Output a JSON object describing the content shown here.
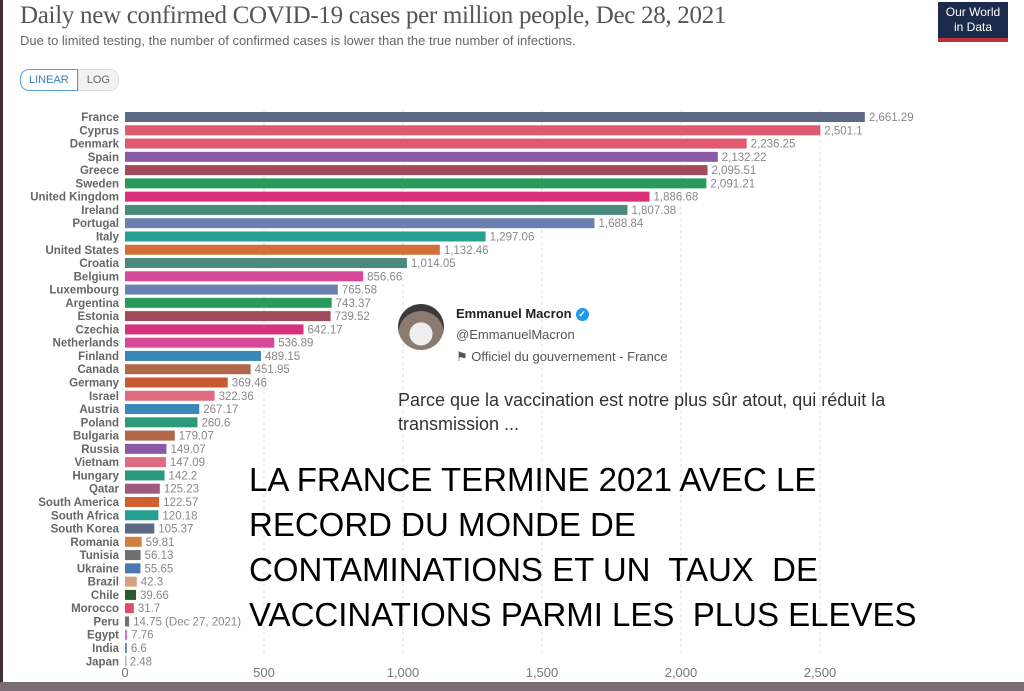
{
  "header": {
    "title": "Daily new confirmed COVID-19 cases per million people, Dec 28, 2021",
    "subtitle": "Due to limited testing, the number of confirmed cases is lower than the true number of infections.",
    "logo": "Our World in Data"
  },
  "toggle": {
    "linear": "LINEAR",
    "log": "LOG",
    "selected": "LINEAR"
  },
  "chart_data": {
    "type": "bar",
    "orientation": "horizontal",
    "xlim": [
      0,
      2661.29
    ],
    "grid": "vertical dashed",
    "xticks": [
      "0",
      "500",
      "1,000",
      "1,500",
      "2,000",
      "2,500"
    ],
    "xtick_values": [
      0,
      500,
      1000,
      1500,
      2000,
      2500
    ],
    "categories": [
      "France",
      "Cyprus",
      "Denmark",
      "Spain",
      "Greece",
      "Sweden",
      "United Kingdom",
      "Ireland",
      "Portugal",
      "Italy",
      "United States",
      "Croatia",
      "Belgium",
      "Luxembourg",
      "Argentina",
      "Estonia",
      "Czechia",
      "Netherlands",
      "Finland",
      "Canada",
      "Germany",
      "Israel",
      "Austria",
      "Poland",
      "Bulgaria",
      "Russia",
      "Vietnam",
      "Hungary",
      "Qatar",
      "South America",
      "South Africa",
      "South Korea",
      "Romania",
      "Tunisia",
      "Ukraine",
      "Brazil",
      "Chile",
      "Morocco",
      "Peru",
      "Egypt",
      "India",
      "Japan"
    ],
    "values": [
      2661.29,
      2501.1,
      2236.25,
      2132.22,
      2095.51,
      2091.21,
      1886.68,
      1807.38,
      1688.84,
      1297.06,
      1132.46,
      1014.05,
      856.66,
      765.58,
      743.37,
      739.52,
      642.17,
      536.89,
      489.15,
      451.95,
      369.46,
      322.36,
      267.17,
      260.6,
      179.07,
      149.07,
      147.09,
      142.2,
      125.23,
      122.57,
      120.18,
      105.37,
      59.81,
      56.13,
      55.65,
      42.3,
      39.66,
      31.7,
      14.75,
      7.76,
      6.6,
      2.48
    ],
    "labels": [
      "2,661.29",
      "2,501.1",
      "2,236.25",
      "2,132.22",
      "2,095.51",
      "2,091.21",
      "1,886.68",
      "1,807.38",
      "1,688.84",
      "1,297.06",
      "1,132.46",
      "1,014.05",
      "856.66",
      "765.58",
      "743.37",
      "739.52",
      "642.17",
      "536.89",
      "489.15",
      "451.95",
      "369.46",
      "322.36",
      "267.17",
      "260.6",
      "179.07",
      "149.07",
      "147.09",
      "142.2",
      "125.23",
      "122.57",
      "120.18",
      "105.37",
      "59.81",
      "56.13",
      "55.65",
      "42.3",
      "39.66",
      "31.7",
      "14.75 (Dec 27, 2021)",
      "7.76",
      "6.6",
      "2.48"
    ],
    "colors": [
      "#5b6a82",
      "#e05a6f",
      "#e05a6f",
      "#8a5aa6",
      "#a04a5a",
      "#2a9a5a",
      "#d8307a",
      "#4a8a7a",
      "#6a80b0",
      "#26a090",
      "#d07038",
      "#4a8a7a",
      "#d84898",
      "#6a80b0",
      "#2a9a5a",
      "#a04a5a",
      "#d8307a",
      "#d84898",
      "#3a88b8",
      "#b06848",
      "#c85a30",
      "#e06a80",
      "#3a88b8",
      "#2a9a7a",
      "#b06848",
      "#8a5aa6",
      "#e06a80",
      "#2a9a7a",
      "#a05a7a",
      "#d06030",
      "#26a090",
      "#5b6a82",
      "#d08040",
      "#707070",
      "#4a78b0",
      "#d8a080",
      "#2a5a2a",
      "#e04a6a",
      "#707070",
      "#c080d0",
      "#6a80b0",
      "#c8b090"
    ]
  },
  "tweet": {
    "name": "Emmanuel Macron",
    "handle": "@EmmanuelMacron",
    "label": "Officiel du gouvernement - France",
    "text": "Parce que la vaccination est notre plus sûr atout, qui réduit la transmission ...",
    "flag_icon": "flag-icon",
    "verified_icon": "verified-badge-icon"
  },
  "overlay_text": "LA FRANCE TERMINE 2021 AVEC LE\nRECORD DU MONDE DE\nCONTAMINATIONS ET UN  TAUX  DE\nVACCINATIONS PARMI LES  PLUS ELEVES"
}
